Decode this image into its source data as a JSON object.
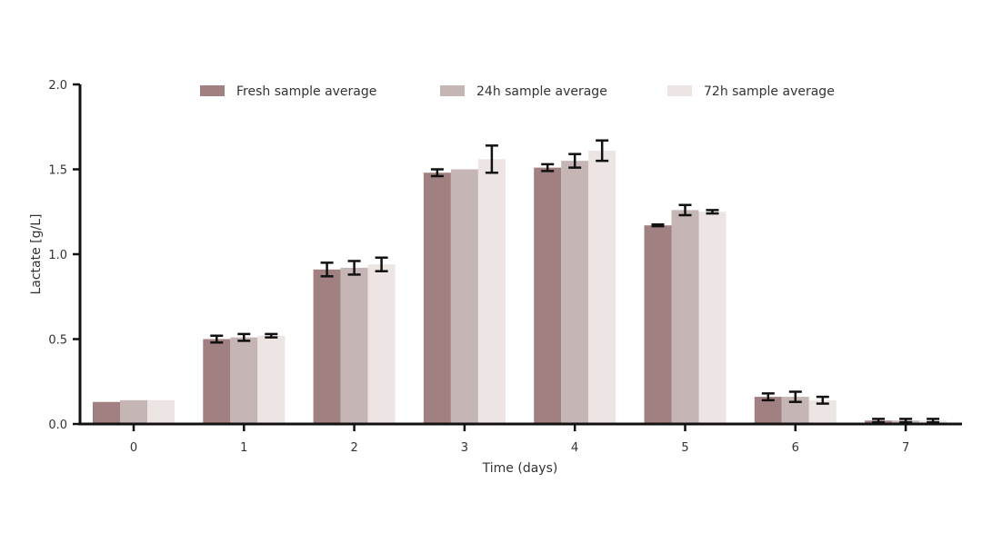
{
  "chart_data": {
    "type": "bar",
    "title": "",
    "xlabel": "Time (days)",
    "ylabel": "Lactate [g/L]",
    "ylim": [
      0,
      2.0
    ],
    "yticks": [
      "0.0",
      "0.5",
      "1.0",
      "1.5",
      "2.0"
    ],
    "categories": [
      "0",
      "1",
      "2",
      "3",
      "4",
      "5",
      "6",
      "7"
    ],
    "series": [
      {
        "name": "Fresh sample average",
        "color": "#a08080",
        "values": [
          0.13,
          0.5,
          0.91,
          1.48,
          1.51,
          1.17,
          0.16,
          0.02
        ],
        "errors": [
          0.0,
          0.02,
          0.04,
          0.02,
          0.02,
          0.005,
          0.02,
          0.01
        ]
      },
      {
        "name": "24h sample average",
        "color": "#c5b5b5",
        "values": [
          0.14,
          0.51,
          0.92,
          1.5,
          1.55,
          1.26,
          0.16,
          0.02
        ],
        "errors": [
          0.0,
          0.02,
          0.04,
          0.0,
          0.04,
          0.03,
          0.03,
          0.01
        ]
      },
      {
        "name": "72h sample average",
        "color": "#ede4e4",
        "values": [
          0.14,
          0.52,
          0.94,
          1.56,
          1.61,
          1.25,
          0.14,
          0.02
        ],
        "errors": [
          0.0,
          0.01,
          0.04,
          0.08,
          0.06,
          0.01,
          0.02,
          0.01
        ]
      }
    ],
    "grid": false,
    "legend_position": "top"
  }
}
